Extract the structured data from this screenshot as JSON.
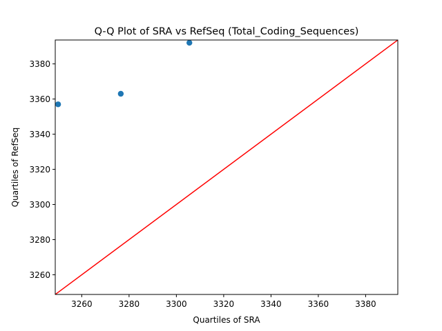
{
  "chart_data": {
    "type": "scatter",
    "title": "Q-Q Plot of SRA vs RefSeq (Total_Coding_Sequences)",
    "xlabel": "Quartiles of SRA",
    "ylabel": "Quartiles of RefSeq",
    "xlim": [
      3248.8,
      3393.6
    ],
    "ylim": [
      3248.8,
      3393.6
    ],
    "x_ticks": [
      3260,
      3280,
      3300,
      3320,
      3340,
      3360,
      3380
    ],
    "y_ticks": [
      3260,
      3280,
      3300,
      3320,
      3340,
      3360,
      3380
    ],
    "grid": false,
    "series": [
      {
        "marker_color": "#1f77b4",
        "points": [
          {
            "x": 3250,
            "y": 3357
          },
          {
            "x": 3276.5,
            "y": 3363
          },
          {
            "x": 3305.5,
            "y": 3392
          }
        ]
      }
    ],
    "reference_line": {
      "color": "#ff0000",
      "from": [
        3248.8,
        3248.8
      ],
      "to": [
        3393.6,
        3393.6
      ]
    }
  }
}
